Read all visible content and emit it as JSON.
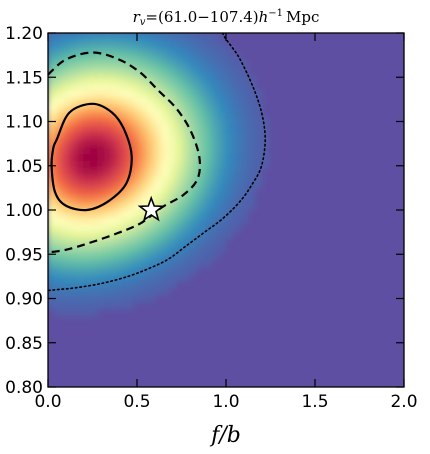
{
  "chart_data": {
    "type": "heatmap",
    "title": "r_v = (61.0−107.4) h⁻¹ Mpc",
    "title_parts": {
      "r": "r",
      "sub": "v",
      "range": "=(61.0−107.4)",
      "h": "h",
      "sup": "−1",
      "unit": "Mpc"
    },
    "xlabel": "f/b",
    "ylabel": "",
    "xlim": [
      0.0,
      2.0
    ],
    "ylim": [
      0.8,
      1.2
    ],
    "x_ticks": [
      "0.0",
      "0.5",
      "1.0",
      "1.5",
      "2.0"
    ],
    "y_ticks": [
      "0.80",
      "0.85",
      "0.90",
      "0.95",
      "1.00",
      "1.05",
      "1.10",
      "1.15",
      "1.20"
    ],
    "colormap": "Spectral_r",
    "background_color": "#5e4fa2",
    "peak": {
      "x": 0.25,
      "y": 1.06
    },
    "fiducial_marker": {
      "shape": "star",
      "x": 0.58,
      "y": 1.0
    },
    "contours": [
      {
        "level": "inner",
        "style": "solid",
        "points": [
          [
            0.05,
            1.08
          ],
          [
            0.12,
            1.11
          ],
          [
            0.25,
            1.12
          ],
          [
            0.36,
            1.11
          ],
          [
            0.43,
            1.09
          ],
          [
            0.47,
            1.06
          ],
          [
            0.44,
            1.03
          ],
          [
            0.34,
            1.01
          ],
          [
            0.22,
            1.0
          ],
          [
            0.1,
            1.005
          ],
          [
            0.04,
            1.02
          ],
          [
            0.02,
            1.05
          ],
          [
            0.03,
            1.07
          ]
        ]
      },
      {
        "level": "middle",
        "style": "dashed",
        "points": [
          [
            0.0,
            1.153
          ],
          [
            0.1,
            1.17
          ],
          [
            0.25,
            1.178
          ],
          [
            0.4,
            1.17
          ],
          [
            0.52,
            1.155
          ],
          [
            0.62,
            1.135
          ],
          [
            0.72,
            1.115
          ],
          [
            0.8,
            1.09
          ],
          [
            0.85,
            1.06
          ],
          [
            0.84,
            1.035
          ],
          [
            0.76,
            1.017
          ],
          [
            0.64,
            1.003
          ],
          [
            0.52,
            0.985
          ],
          [
            0.38,
            0.973
          ],
          [
            0.22,
            0.962
          ],
          [
            0.1,
            0.955
          ],
          [
            0.0,
            0.952
          ]
        ]
      },
      {
        "level": "outer",
        "style": "dotted",
        "points": [
          [
            0.98,
            1.2
          ],
          [
            1.0,
            1.193
          ],
          [
            1.03,
            1.185
          ],
          [
            1.08,
            1.17
          ],
          [
            1.15,
            1.14
          ],
          [
            1.2,
            1.11
          ],
          [
            1.22,
            1.08
          ],
          [
            1.2,
            1.05
          ],
          [
            1.15,
            1.03
          ],
          [
            1.08,
            1.01
          ],
          [
            0.98,
            0.99
          ],
          [
            0.88,
            0.975
          ],
          [
            0.78,
            0.96
          ],
          [
            0.68,
            0.945
          ],
          [
            0.58,
            0.935
          ],
          [
            0.45,
            0.925
          ],
          [
            0.3,
            0.917
          ],
          [
            0.15,
            0.912
          ],
          [
            0.05,
            0.91
          ],
          [
            0.0,
            0.909
          ]
        ]
      }
    ]
  }
}
